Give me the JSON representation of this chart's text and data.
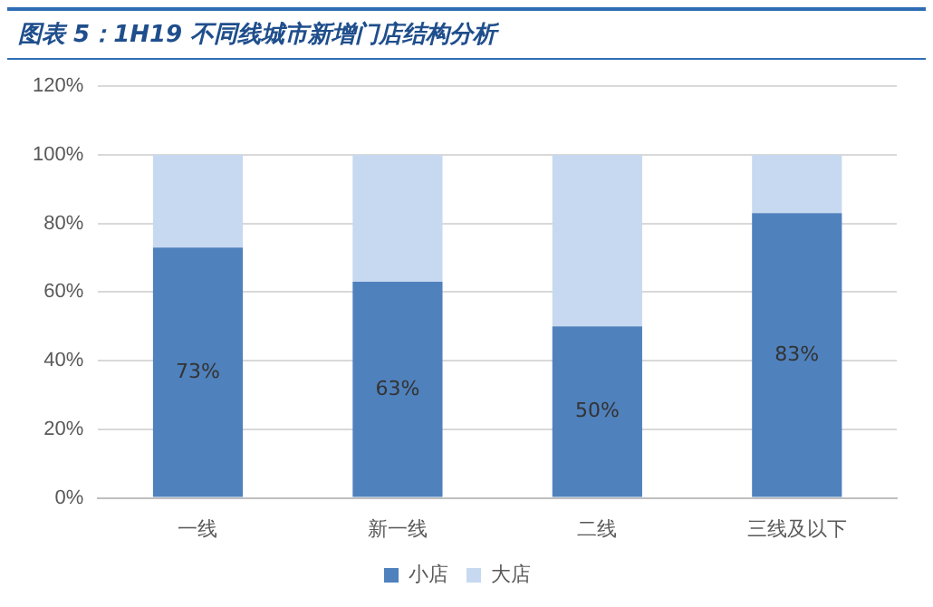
{
  "chart_data": {
    "type": "bar",
    "title": "图表 5：1H19 不同线城市新增门店结构分析",
    "categories": [
      "一线",
      "新一线",
      "二线",
      "三线及以下"
    ],
    "stacked": true,
    "series": [
      {
        "name": "小店",
        "color": "#4f81bd",
        "values": [
          73,
          63,
          50,
          83
        ],
        "value_labels": [
          "73%",
          "63%",
          "50%",
          "83%"
        ]
      },
      {
        "name": "大店",
        "color": "#c6d9f0",
        "values": [
          27,
          37,
          50,
          17
        ]
      }
    ],
    "ylim": [
      0,
      120
    ],
    "yticks": [
      {
        "value": 0,
        "label": "0%"
      },
      {
        "value": 20,
        "label": "20%"
      },
      {
        "value": 40,
        "label": "40%"
      },
      {
        "value": 60,
        "label": "60%"
      },
      {
        "value": 80,
        "label": "80%"
      },
      {
        "value": 100,
        "label": "100%"
      },
      {
        "value": 120,
        "label": "120%"
      }
    ],
    "grid": "y",
    "legend": "bottom"
  }
}
